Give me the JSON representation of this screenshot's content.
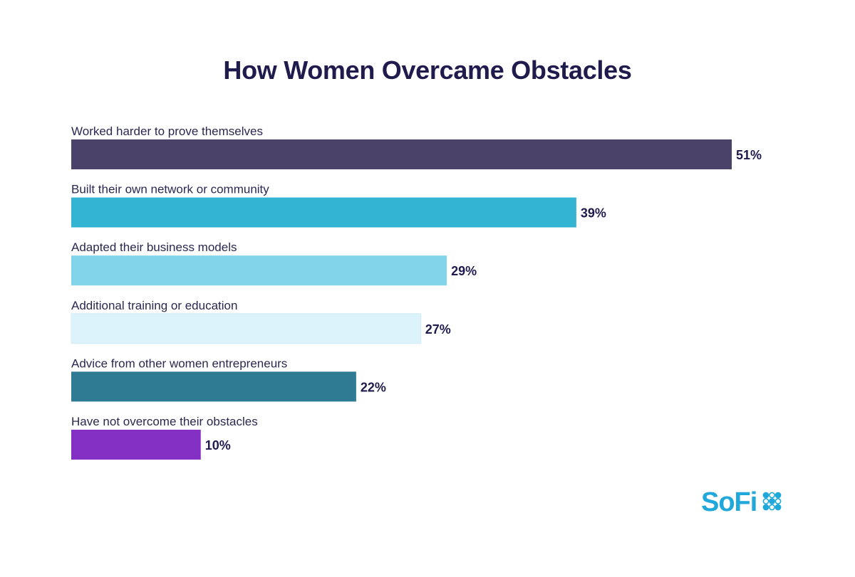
{
  "chart_data": {
    "type": "bar",
    "orientation": "horizontal",
    "title": "How Women Overcame Obstacles",
    "categories": [
      "Worked harder to prove themselves",
      "Built their own network or community",
      "Adapted their business models",
      "Additional training or education",
      "Advice from other women entrepreneurs",
      "Have not overcome their obstacles"
    ],
    "values": [
      51,
      39,
      29,
      27,
      22,
      10
    ],
    "value_labels": [
      "51%",
      "39%",
      "29%",
      "27%",
      "22%",
      "10%"
    ],
    "colors": [
      "#4a4268",
      "#34b4d3",
      "#82d4ea",
      "#ddf3fb",
      "#2f7b93",
      "#8530c5"
    ],
    "xlim": [
      0,
      51
    ],
    "grid": false,
    "legend": "none"
  },
  "brand": {
    "name": "SoFi",
    "color": "#1fa8d9",
    "icon": "sofi-dots-icon"
  }
}
